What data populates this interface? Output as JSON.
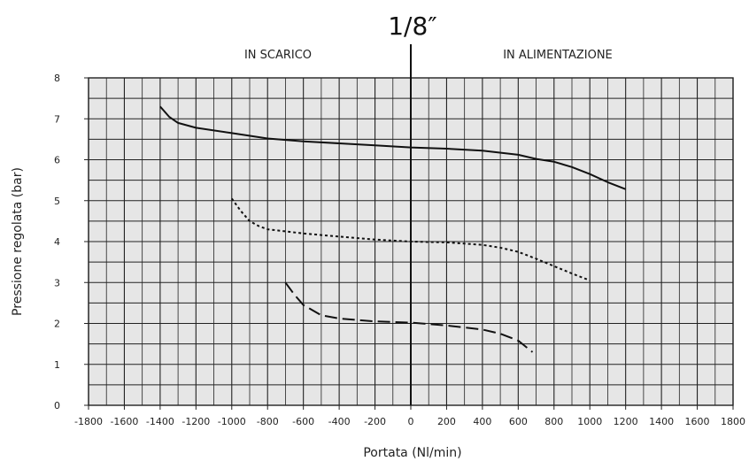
{
  "chart_data": {
    "type": "line",
    "title": "1/8″",
    "xlabel": "Portata (Nl/min)",
    "ylabel": "Pressione regolata (bar)",
    "region_labels": {
      "left": "IN SCARICO",
      "right": "IN ALIMENTAZIONE"
    },
    "xlim": [
      -1800,
      1800
    ],
    "ylim": [
      0,
      8
    ],
    "x_ticks": [
      -1800,
      -1600,
      -1400,
      -1200,
      -1000,
      -800,
      -600,
      -400,
      -200,
      0,
      200,
      400,
      600,
      800,
      1000,
      1200,
      1400,
      1600,
      1800
    ],
    "y_ticks": [
      0,
      1,
      2,
      3,
      4,
      5,
      6,
      7,
      8
    ],
    "grid": true,
    "colors": {
      "background": "#e6e6e6",
      "grid": "#222222",
      "line": "#111111"
    },
    "series": [
      {
        "style": "solid",
        "points": [
          [
            -1400,
            7.3
          ],
          [
            -1350,
            7.05
          ],
          [
            -1300,
            6.9
          ],
          [
            -1200,
            6.78
          ],
          [
            -1000,
            6.65
          ],
          [
            -800,
            6.52
          ],
          [
            -600,
            6.45
          ],
          [
            -400,
            6.4
          ],
          [
            -200,
            6.35
          ],
          [
            0,
            6.3
          ],
          [
            200,
            6.27
          ],
          [
            400,
            6.22
          ],
          [
            600,
            6.12
          ],
          [
            700,
            6.02
          ],
          [
            800,
            5.95
          ],
          [
            900,
            5.82
          ],
          [
            1000,
            5.65
          ],
          [
            1100,
            5.45
          ],
          [
            1200,
            5.28
          ]
        ]
      },
      {
        "style": "dotted",
        "points": [
          [
            -1000,
            5.05
          ],
          [
            -950,
            4.75
          ],
          [
            -900,
            4.5
          ],
          [
            -850,
            4.38
          ],
          [
            -800,
            4.3
          ],
          [
            -600,
            4.2
          ],
          [
            -400,
            4.12
          ],
          [
            -200,
            4.05
          ],
          [
            0,
            4.0
          ],
          [
            200,
            3.98
          ],
          [
            400,
            3.92
          ],
          [
            500,
            3.85
          ],
          [
            600,
            3.75
          ],
          [
            700,
            3.58
          ],
          [
            800,
            3.4
          ],
          [
            900,
            3.22
          ],
          [
            1000,
            3.05
          ]
        ]
      },
      {
        "style": "dashed",
        "points": [
          [
            -700,
            3.0
          ],
          [
            -650,
            2.7
          ],
          [
            -600,
            2.45
          ],
          [
            -500,
            2.2
          ],
          [
            -400,
            2.12
          ],
          [
            -200,
            2.05
          ],
          [
            0,
            2.02
          ],
          [
            200,
            1.95
          ],
          [
            400,
            1.85
          ],
          [
            500,
            1.75
          ],
          [
            600,
            1.58
          ],
          [
            680,
            1.3
          ]
        ]
      }
    ]
  }
}
